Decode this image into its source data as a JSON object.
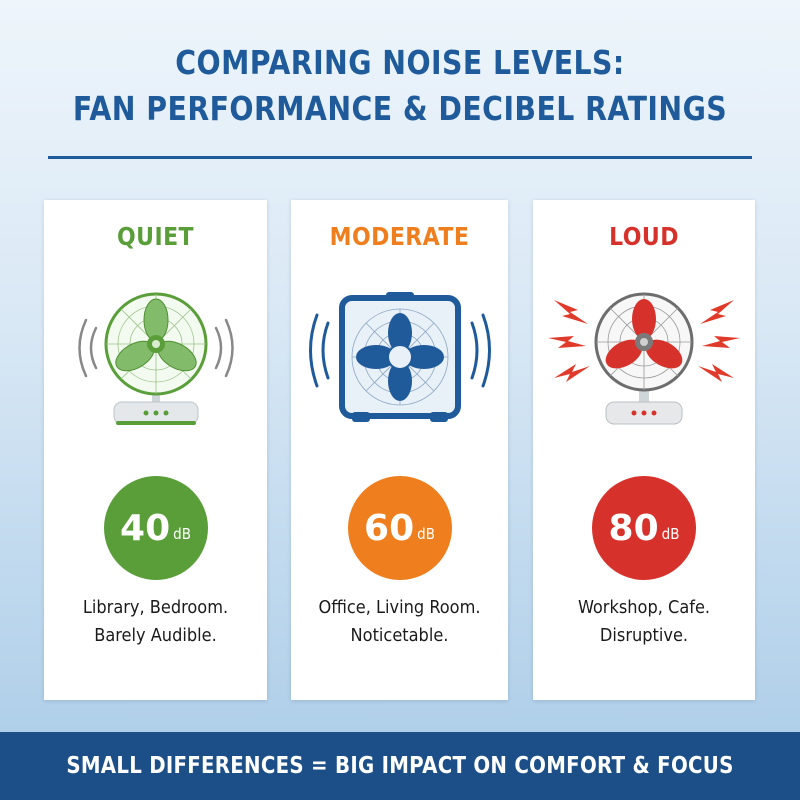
{
  "header": {
    "title_line1": "COMPARING NOISE LEVELS:",
    "title_line2": "FAN PERFORMANCE & DECIBEL RATINGS"
  },
  "cards": [
    {
      "level": "QUIET",
      "color": "#5a9e3a",
      "decibel_value": "40",
      "decibel_unit": "dB",
      "description_line1": "Library, Bedroom.",
      "description_line2": "Barely Audible.",
      "icon": "desk-fan-icon"
    },
    {
      "level": "MODERATE",
      "color": "#ef7e1e",
      "decibel_value": "60",
      "decibel_unit": "dB",
      "description_line1": "Office, Living Room.",
      "description_line2": "Noticetable.",
      "icon": "box-fan-icon"
    },
    {
      "level": "LOUD",
      "color": "#d6322b",
      "decibel_value": "80",
      "decibel_unit": "dB",
      "description_line1": "Workshop, Cafe.",
      "description_line2": "Disruptive.",
      "icon": "loud-fan-icon"
    }
  ],
  "footer": {
    "text": "SMALL DIFFERENCES = BIG IMPACT ON COMFORT & FOCUS"
  },
  "colors": {
    "primary": "#1f5a9a",
    "footer_background": "#1c4f87"
  }
}
